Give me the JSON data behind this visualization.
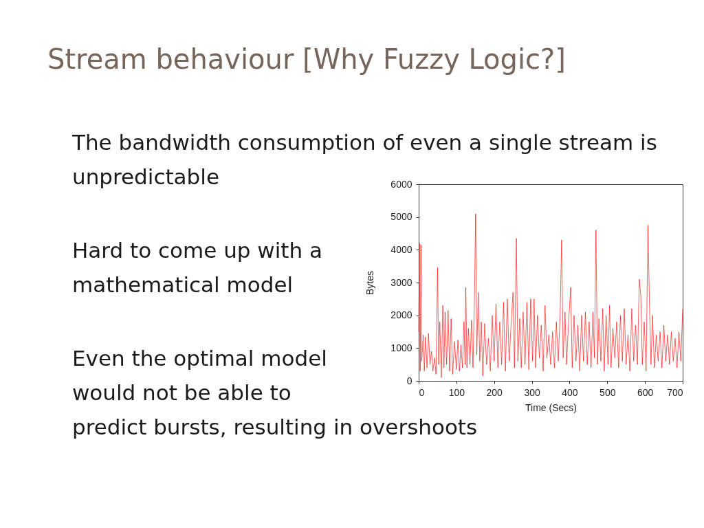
{
  "chart_data": {
    "type": "line",
    "title": "Stream behaviour [Why Fuzzy Logic?]",
    "annotations": [
      "The bandwidth consumption of even a single stream is\nunpredictable",
      "Hard to come up with a\nmathematical model",
      "Even the optimal model\nwould not be able to\npredict bursts, resulting in overshoots"
    ],
    "xlabel": "Time (Secs)",
    "ylabel": "Bytes",
    "xlim": [
      0,
      700
    ],
    "ylim": [
      0,
      6000
    ],
    "xticks": [
      0,
      100,
      200,
      300,
      400,
      500,
      600,
      700
    ],
    "yticks": [
      0,
      1000,
      2000,
      3000,
      4000,
      5000,
      6000
    ],
    "grid": false,
    "line_style": "solid",
    "series": [
      {
        "color": "#ff0000",
        "x": [
          0,
          2,
          4,
          6,
          8,
          12,
          15,
          18,
          22,
          26,
          30,
          34,
          38,
          42,
          46,
          50,
          53,
          56,
          60,
          64,
          67,
          70,
          74,
          78,
          82,
          86,
          90,
          95,
          100,
          104,
          108,
          112,
          116,
          120,
          123,
          125,
          128,
          132,
          136,
          140,
          144,
          148,
          151,
          154,
          158,
          162,
          166,
          170,
          175,
          180,
          185,
          190,
          195,
          200,
          205,
          210,
          215,
          220,
          225,
          230,
          235,
          240,
          245,
          250,
          254,
          259,
          263,
          268,
          272,
          277,
          282,
          287,
          292,
          297,
          302,
          306,
          310,
          315,
          320,
          325,
          330,
          335,
          340,
          345,
          350,
          355,
          360,
          365,
          370,
          375,
          379,
          383,
          388,
          392,
          398,
          403,
          407,
          412,
          417,
          422,
          427,
          432,
          437,
          442,
          447,
          452,
          457,
          462,
          466,
          470,
          474,
          478,
          483,
          488,
          492,
          497,
          502,
          506,
          510,
          515,
          520,
          525,
          530,
          535,
          540,
          545,
          550,
          555,
          560,
          565,
          570,
          575,
          580,
          585,
          589,
          593,
          598,
          603,
          608,
          612,
          616,
          620,
          625,
          630,
          635,
          640,
          645,
          650,
          655,
          660,
          665,
          670,
          675,
          680,
          685,
          690,
          695,
          700
        ],
        "values": [
          1500,
          4200,
          300,
          4150,
          600,
          1400,
          300,
          1350,
          400,
          1450,
          500,
          900,
          300,
          700,
          200,
          3450,
          500,
          1800,
          100,
          2300,
          400,
          2100,
          500,
          2150,
          300,
          1900,
          200,
          1200,
          350,
          1250,
          300,
          1100,
          400,
          1800,
          500,
          2850,
          400,
          1600,
          500,
          1850,
          400,
          2600,
          5100,
          800,
          2700,
          600,
          1800,
          150,
          1750,
          500,
          1300,
          300,
          2000,
          600,
          2350,
          400,
          1800,
          500,
          2400,
          300,
          2500,
          600,
          1700,
          2700,
          400,
          4350,
          600,
          1900,
          400,
          2100,
          500,
          2400,
          350,
          2500,
          600,
          2500,
          400,
          2000,
          700,
          1700,
          300,
          2300,
          700,
          1400,
          500,
          1500,
          400,
          1800,
          600,
          2000,
          4300,
          700,
          2100,
          500,
          1900,
          2850,
          400,
          2000,
          600,
          1700,
          300,
          2000,
          600,
          2100,
          500,
          1800,
          400,
          2100,
          700,
          4600,
          500,
          1900,
          600,
          2200,
          300,
          2000,
          500,
          2300,
          400,
          1600,
          700,
          1800,
          400,
          2000,
          600,
          2200,
          500,
          1400,
          300,
          2200,
          600,
          1700,
          500,
          3100,
          2600,
          500,
          1800,
          300,
          4750,
          2300,
          500,
          2000,
          400,
          1400,
          600,
          1500,
          400,
          1700,
          600,
          1400,
          500,
          1500,
          600,
          1300,
          400,
          1500,
          600,
          2200
        ]
      }
    ]
  }
}
